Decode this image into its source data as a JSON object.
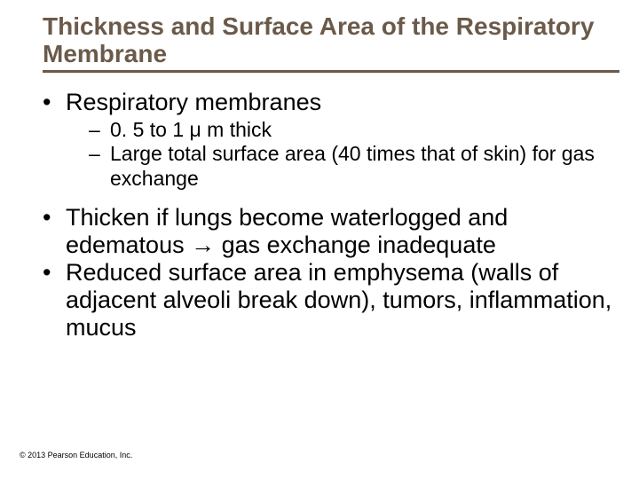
{
  "title_color": "#6b5a4a",
  "underline_color": "#6b5a4a",
  "text_color": "#000000",
  "title_fontsize": 28,
  "title": "Thickness and Surface Area of the Respiratory Membrane",
  "b1": "Respiratory membranes",
  "s1": "0. 5 to 1 μ m thick",
  "s2": "Large total surface area (40 times that of skin) for gas exchange",
  "b2": "Thicken if lungs become waterlogged and edematous → gas exchange inadequate",
  "b3": "Reduced surface area in emphysema (walls of adjacent alveoli break down), tumors, inflammation, mucus",
  "copyright": "© 2013 Pearson Education, Inc."
}
